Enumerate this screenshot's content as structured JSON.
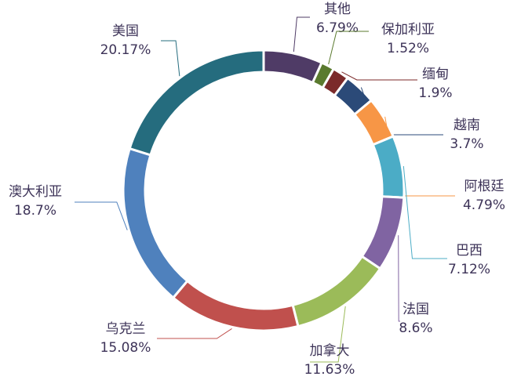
{
  "chart_data": {
    "type": "pie",
    "categories": [
      "其他",
      "保加利亚",
      "缅甸",
      "越南",
      "阿根廷",
      "巴西",
      "法国",
      "加拿大",
      "乌克兰",
      "澳大利亚",
      "美国"
    ],
    "values": [
      6.79,
      1.52,
      1.9,
      3.7,
      4.79,
      7.12,
      8.6,
      11.63,
      15.08,
      18.7,
      20.17
    ],
    "value_labels": [
      "6.79%",
      "1.52%",
      "1.9%",
      "3.7%",
      "4.79%",
      "7.12%",
      "8.6%",
      "11.63%",
      "15.08%",
      "18.7%",
      "20.17%"
    ],
    "colors": [
      "#4f3b66",
      "#5a7a2e",
      "#7b2a2a",
      "#2b4a78",
      "#f79646",
      "#4bacc6",
      "#8064a2",
      "#9bbb59",
      "#c0504d",
      "#4f81bd",
      "#256c7e"
    ]
  }
}
